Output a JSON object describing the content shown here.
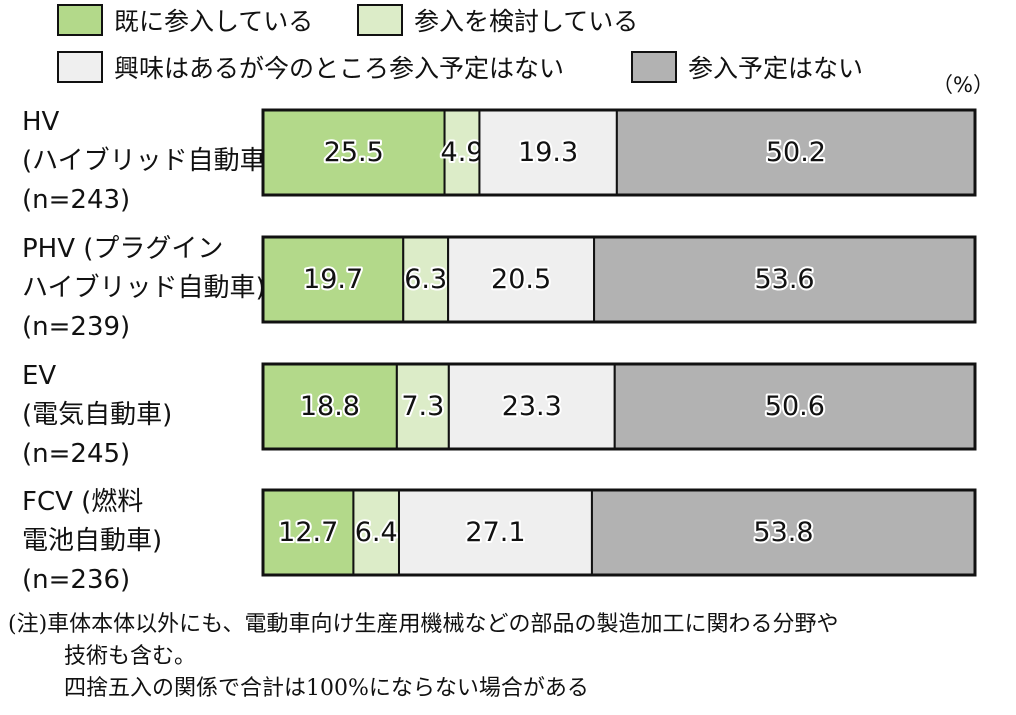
{
  "chart_data": {
    "type": "bar",
    "orientation": "horizontal",
    "stacked": true,
    "unit": "（%）",
    "categories": [
      [
        "HV",
        "(ハイブリッド自動車)",
        "(n=243)"
      ],
      [
        "PHV (プラグイン",
        "ハイブリッド自動車)",
        "(n=239)"
      ],
      [
        "EV",
        "(電気自動車)",
        "(n=245)"
      ],
      [
        "FCV (燃料",
        "電池自動車)",
        "(n=236)"
      ]
    ],
    "series": [
      {
        "name": "既に参入している",
        "color": "#b3d98a",
        "values": [
          25.5,
          19.7,
          18.8,
          12.7
        ]
      },
      {
        "name": "参入を検討している",
        "color": "#dcecc8",
        "values": [
          4.9,
          6.3,
          7.3,
          6.4
        ]
      },
      {
        "name": "興味はあるが今のところ参入予定はない",
        "color": "#efefef",
        "values": [
          19.3,
          20.5,
          23.3,
          27.1
        ]
      },
      {
        "name": "参入予定はない",
        "color": "#b2b2b2",
        "values": [
          50.2,
          53.6,
          50.6,
          53.8
        ]
      }
    ],
    "value_labels": [
      [
        "25.5",
        "4.9",
        "19.3",
        "50.2"
      ],
      [
        "19.7",
        "6.3",
        "20.5",
        "53.6"
      ],
      [
        "18.8",
        "7.3",
        "23.3",
        "50.6"
      ],
      [
        "12.7",
        "6.4",
        "27.1",
        "53.8"
      ]
    ],
    "xlim": [
      0,
      100
    ],
    "grid": false,
    "legend_position": "top"
  },
  "notes": [
    "(注)車体本体以外にも、電動車向け生産用機械などの部品の製造加工に関わる分野や",
    "技術も含む。",
    "四捨五入の関係で合計は100%にならない場合がある"
  ]
}
